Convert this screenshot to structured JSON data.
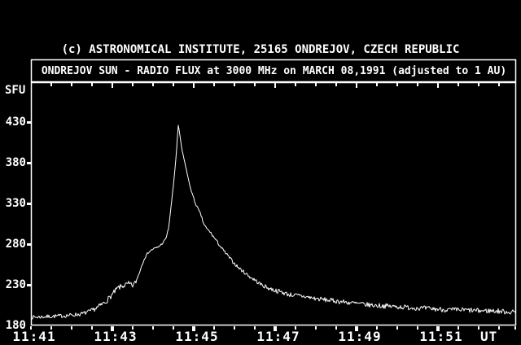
{
  "window": {
    "background_color": "#000000",
    "foreground_color": "#ffffff"
  },
  "chart_data": {
    "type": "line",
    "attribution": "(c) ASTRONOMICAL INSTITUTE, 25165 ONDREJOV, CZECH REPUBLIC",
    "title": "ONDREJOV SUN - RADIO FLUX at 3000 MHz on MARCH 08,1991 (adjusted to 1 AU)",
    "ylabel": "SFU",
    "x_axis_unit_label": "UT",
    "y_ticks": [
      430,
      380,
      330,
      280,
      230,
      180
    ],
    "y_axis_range_sfu": [
      180,
      479
    ],
    "x_tick_labels": [
      "11:41",
      "11:43",
      "11:45",
      "11:47",
      "11:49",
      "11:51"
    ],
    "x_start_time": "11:41:00",
    "x_end_time": "11:52:55",
    "x_total_seconds": 715,
    "minor_tick_interval_seconds": 30,
    "major_tick_interval_seconds": 120,
    "grid": "none",
    "line_color": "#ffffff",
    "series": [
      {
        "name": "solar radio flux at 3000 MHz",
        "units": "SFU",
        "points_t_seconds_vs_sfu": [
          [
            0,
            190
          ],
          [
            26,
            191
          ],
          [
            50,
            192
          ],
          [
            74,
            194
          ],
          [
            86,
            197
          ],
          [
            98,
            202
          ],
          [
            110,
            209
          ],
          [
            120,
            218
          ],
          [
            128,
            226
          ],
          [
            137,
            229
          ],
          [
            144,
            231
          ],
          [
            150,
            229
          ],
          [
            155,
            234
          ],
          [
            161,
            248
          ],
          [
            167,
            262
          ],
          [
            173,
            270
          ],
          [
            180,
            274
          ],
          [
            187,
            276
          ],
          [
            194,
            281
          ],
          [
            199,
            287
          ],
          [
            203,
            300
          ],
          [
            206,
            322
          ],
          [
            210,
            352
          ],
          [
            214,
            388
          ],
          [
            216,
            412
          ],
          [
            217,
            427
          ],
          [
            220,
            411
          ],
          [
            223,
            394
          ],
          [
            228,
            376
          ],
          [
            233,
            356
          ],
          [
            238,
            341
          ],
          [
            242,
            331
          ],
          [
            247,
            322
          ],
          [
            251,
            315
          ],
          [
            254,
            306
          ],
          [
            259,
            299
          ],
          [
            264,
            295
          ],
          [
            270,
            288
          ],
          [
            276,
            281
          ],
          [
            282,
            274
          ],
          [
            288,
            268
          ],
          [
            294,
            262
          ],
          [
            300,
            256
          ],
          [
            306,
            251
          ],
          [
            312,
            247
          ],
          [
            318,
            243
          ],
          [
            324,
            239
          ],
          [
            330,
            236
          ],
          [
            336,
            232
          ],
          [
            342,
            229
          ],
          [
            350,
            226
          ],
          [
            360,
            223
          ],
          [
            370,
            221
          ],
          [
            380,
            218
          ],
          [
            400,
            216
          ],
          [
            420,
            213
          ],
          [
            440,
            211
          ],
          [
            460,
            209
          ],
          [
            480,
            207
          ],
          [
            500,
            205
          ],
          [
            520,
            204
          ],
          [
            540,
            203
          ],
          [
            560,
            202
          ],
          [
            580,
            201
          ],
          [
            600,
            200
          ],
          [
            620,
            199
          ],
          [
            640,
            199
          ],
          [
            660,
            198
          ],
          [
            680,
            198
          ],
          [
            700,
            197
          ],
          [
            715,
            196
          ]
        ],
        "noise_amplitude_sfu_breakpoints": [
          [
            0,
            2.2
          ],
          [
            90,
            2.6
          ],
          [
            100,
            3.2
          ],
          [
            150,
            3.4
          ],
          [
            158,
            2.0
          ],
          [
            165,
            1.2
          ],
          [
            185,
            1.4
          ],
          [
            200,
            0.8
          ],
          [
            222,
            0.8
          ],
          [
            245,
            1.4
          ],
          [
            280,
            1.8
          ],
          [
            320,
            2.2
          ],
          [
            360,
            2.8
          ],
          [
            500,
            3.0
          ],
          [
            715,
            3.2
          ]
        ]
      }
    ],
    "annotations": {
      "peak": {
        "time": "11:44:37",
        "value_sfu": 427
      },
      "pre_flare_baseline_sfu": 190,
      "precursor_bump": {
        "time": "11:43:10",
        "value_sfu": 230
      },
      "rise_shoulder": {
        "time": "11:44:05",
        "value_sfu": 276
      },
      "post_flare_level_sfu": 196
    }
  }
}
